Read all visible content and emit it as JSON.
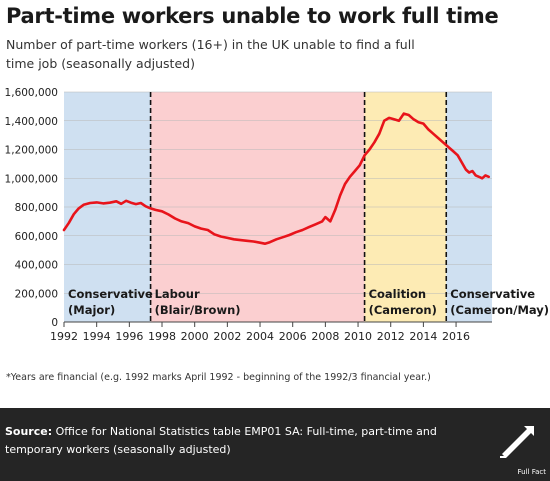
{
  "title": "Part-time workers unable to work full time",
  "subtitle": "Number of part-time workers (16+) in the UK unable to find a full time job (seasonally adjusted)",
  "footnote": "*Years are financial (e.g. 1992 marks April 1992 - beginning of the 1992/3 financial year.)",
  "source": {
    "label": "Source:",
    "text": "Office for National Statistics table EMP01 SA: Full-time, part-time and temporary workers (seasonally adjusted)"
  },
  "logo": {
    "icon": "full-fact-logo-icon",
    "text": "Full Fact"
  },
  "chart_data": {
    "type": "line",
    "x_ticks": [
      1992,
      1994,
      1996,
      1998,
      2000,
      2002,
      2004,
      2006,
      2008,
      2010,
      2012,
      2014,
      2016
    ],
    "y_ticks": [
      0,
      200000,
      400000,
      600000,
      800000,
      1000000,
      1200000,
      1400000,
      1600000
    ],
    "y_tick_labels": [
      "0",
      "200,000",
      "400,000",
      "600,000",
      "800,000",
      "1,000,000",
      "1,200,000",
      "1,400,000",
      "1,600,000"
    ],
    "xlim": [
      1992,
      2018.2
    ],
    "ylim": [
      0,
      1600000
    ],
    "grid": "horizontal",
    "line_color": "#e8141b",
    "periods": [
      {
        "label_1": "Conservative",
        "label_2": "(Major)",
        "start": 1992,
        "end": 1997.3,
        "color": "#cfe0f1"
      },
      {
        "label_1": "Labour",
        "label_2": "(Blair/Brown)",
        "start": 1997.3,
        "end": 2010.4,
        "color": "#fbcfd0"
      },
      {
        "label_1": "Coalition",
        "label_2": "(Cameron)",
        "start": 2010.4,
        "end": 2015.4,
        "color": "#fdebb4"
      },
      {
        "label_1": "Conservative",
        "label_2": "(Cameron/May)",
        "start": 2015.4,
        "end": 2018.2,
        "color": "#cfe0f1"
      }
    ],
    "series": [
      {
        "x": [
          1992.0,
          1992.3,
          1992.6,
          1992.9,
          1993.2,
          1993.6,
          1994.0,
          1994.4,
          1994.8,
          1995.2,
          1995.5,
          1995.8,
          1996.1,
          1996.4,
          1996.7,
          1997.0,
          1997.3,
          1997.6,
          1998.0,
          1998.4,
          1998.8,
          1999.2,
          1999.6,
          2000.0,
          2000.4,
          2000.8,
          2001.2,
          2001.6,
          2002.0,
          2002.4,
          2002.8,
          2003.2,
          2003.6,
          2004.0,
          2004.3,
          2004.6,
          2005.0,
          2005.4,
          2005.8,
          2006.2,
          2006.6,
          2007.0,
          2007.4,
          2007.8,
          2008.0,
          2008.3,
          2008.6,
          2008.9,
          2009.2,
          2009.5,
          2009.8,
          2010.1,
          2010.4,
          2010.7,
          2011.0,
          2011.3,
          2011.6,
          2011.9,
          2012.2,
          2012.5,
          2012.8,
          2013.1,
          2013.4,
          2013.7,
          2014.0,
          2014.3,
          2014.6,
          2014.9,
          2015.2,
          2015.5,
          2015.8,
          2016.1,
          2016.4,
          2016.6,
          2016.8,
          2017.0,
          2017.2,
          2017.4,
          2017.6,
          2017.8,
          2018.0
        ],
        "values": [
          640000,
          690000,
          750000,
          790000,
          815000,
          828000,
          832000,
          825000,
          830000,
          840000,
          822000,
          843000,
          830000,
          820000,
          828000,
          805000,
          790000,
          780000,
          770000,
          748000,
          720000,
          700000,
          688000,
          665000,
          650000,
          640000,
          610000,
          595000,
          585000,
          575000,
          570000,
          565000,
          560000,
          552000,
          545000,
          555000,
          575000,
          590000,
          605000,
          625000,
          640000,
          660000,
          680000,
          700000,
          730000,
          700000,
          780000,
          880000,
          960000,
          1010000,
          1050000,
          1090000,
          1160000,
          1200000,
          1250000,
          1310000,
          1400000,
          1420000,
          1410000,
          1400000,
          1450000,
          1440000,
          1410000,
          1390000,
          1380000,
          1340000,
          1310000,
          1280000,
          1250000,
          1220000,
          1190000,
          1160000,
          1100000,
          1060000,
          1040000,
          1050000,
          1020000,
          1010000,
          1000000,
          1020000,
          1010000
        ]
      }
    ]
  }
}
